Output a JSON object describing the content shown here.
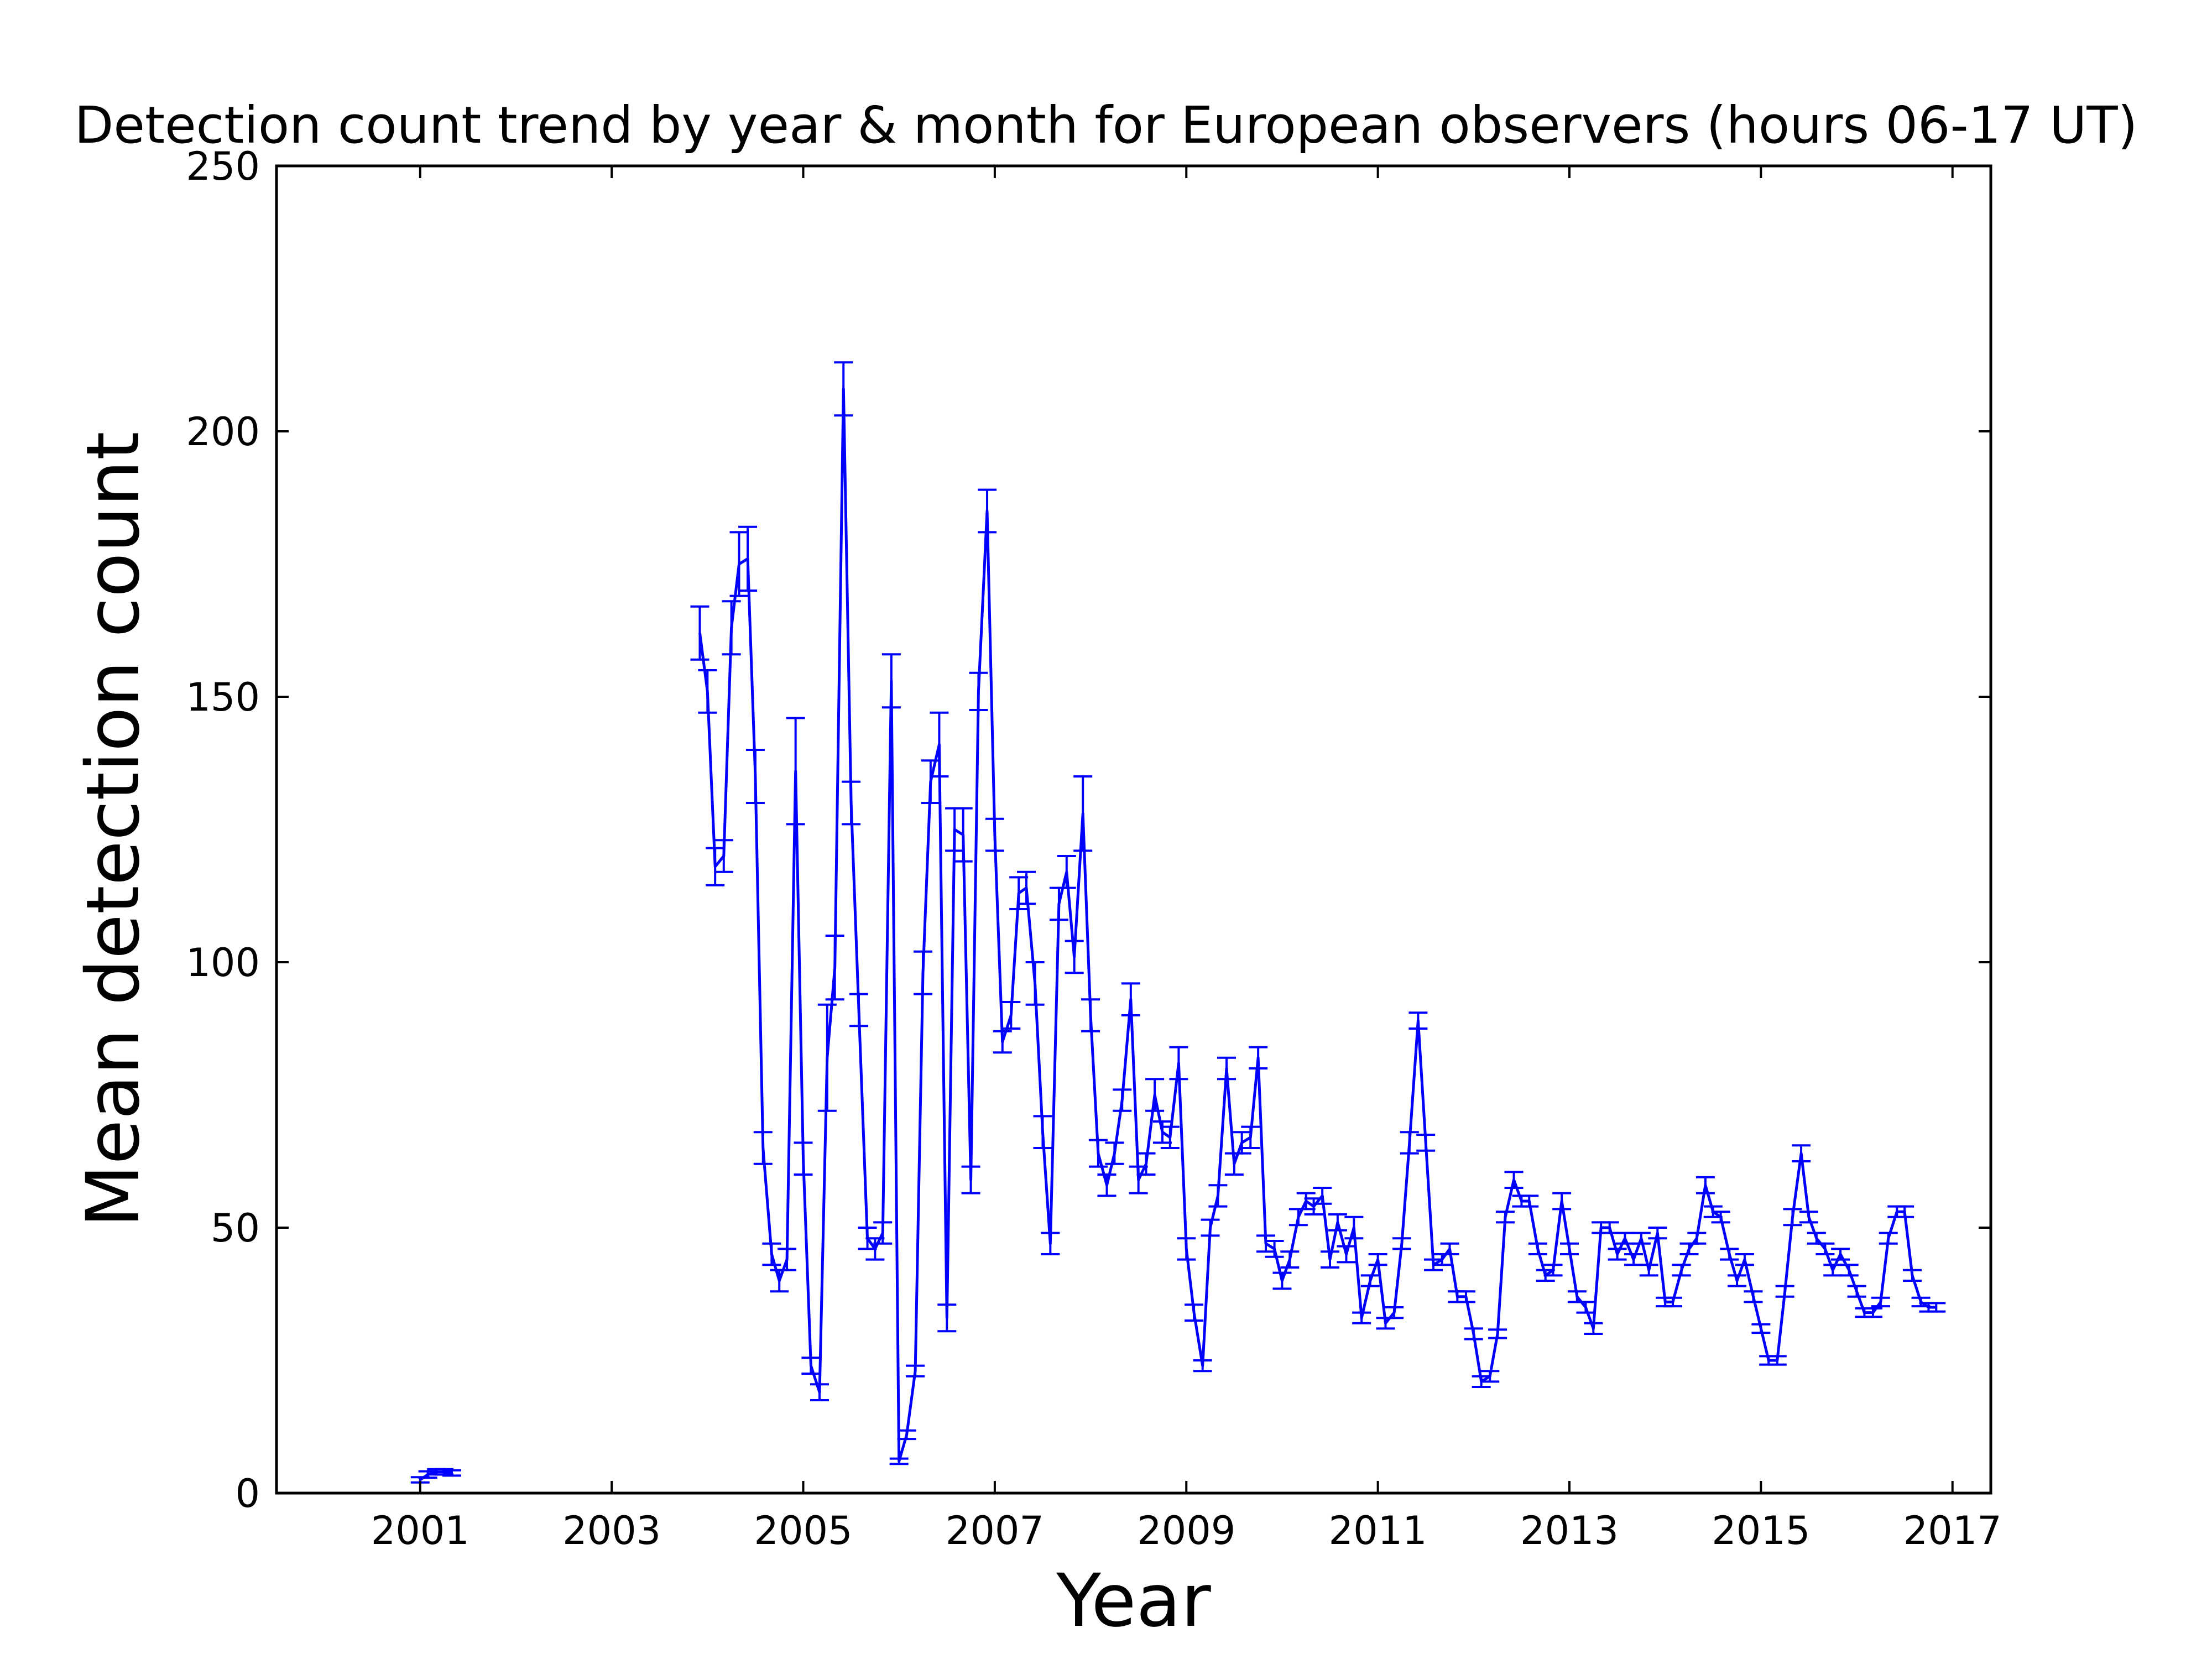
{
  "chart_data": {
    "type": "line",
    "title": "Detection count trend by year & month for European observers (hours 06-17 UT)",
    "xlabel": "Year",
    "ylabel": "Mean detection count",
    "xlim": [
      1999.5,
      2017.4
    ],
    "ylim": [
      0,
      250
    ],
    "x_ticks": [
      2001,
      2003,
      2005,
      2007,
      2009,
      2011,
      2013,
      2015,
      2017
    ],
    "x_tick_labels": [
      "2001",
      "2003",
      "2005",
      "2007",
      "2009",
      "2011",
      "2013",
      "2015",
      "2017"
    ],
    "y_ticks": [
      0,
      50,
      100,
      150,
      200,
      250
    ],
    "y_tick_labels": [
      "0",
      "50",
      "100",
      "150",
      "200",
      "250"
    ],
    "grid": false,
    "legend": null,
    "series": [
      {
        "color": "#0000ff",
        "error_bars": true,
        "segments": [
          [
            [
              2001.0,
              2.5,
              0.5
            ],
            [
              2001.08,
              3.5,
              0.6
            ],
            [
              2001.17,
              4.0,
              0.5
            ],
            [
              2001.25,
              4.0,
              0.5
            ],
            [
              2001.33,
              3.8,
              0.5
            ]
          ],
          [
            [
              2003.92,
              162,
              5
            ],
            [
              2004.0,
              151,
              4
            ],
            [
              2004.08,
              118,
              3.5
            ],
            [
              2004.17,
              120,
              3
            ],
            [
              2004.25,
              163,
              5
            ],
            [
              2004.33,
              175,
              6
            ],
            [
              2004.42,
              176,
              6
            ],
            [
              2004.5,
              135,
              5
            ],
            [
              2004.58,
              65,
              3
            ],
            [
              2004.67,
              45,
              2
            ],
            [
              2004.75,
              40,
              2
            ],
            [
              2004.83,
              44,
              2
            ],
            [
              2004.92,
              136,
              10
            ],
            [
              2005.0,
              63,
              3
            ],
            [
              2005.08,
              24,
              1.5
            ],
            [
              2005.17,
              19,
              1.5
            ],
            [
              2005.25,
              82,
              10
            ],
            [
              2005.33,
              99,
              6
            ],
            [
              2005.42,
              208,
              5
            ],
            [
              2005.5,
              130,
              4
            ],
            [
              2005.58,
              91,
              3
            ],
            [
              2005.67,
              48,
              2
            ],
            [
              2005.75,
              46,
              2
            ],
            [
              2005.83,
              49,
              2
            ],
            [
              2005.92,
              153,
              5
            ],
            [
              2006.0,
              6,
              0.5
            ],
            [
              2006.08,
              11,
              0.8
            ],
            [
              2006.17,
              23,
              1
            ],
            [
              2006.25,
              98,
              4
            ],
            [
              2006.33,
              134,
              4
            ],
            [
              2006.42,
              141,
              6
            ],
            [
              2006.5,
              33,
              2.5
            ],
            [
              2006.58,
              125,
              4
            ],
            [
              2006.67,
              124,
              5
            ],
            [
              2006.75,
              59,
              2.5
            ],
            [
              2006.83,
              151,
              3.5
            ],
            [
              2006.92,
              185,
              4
            ],
            [
              2007.0,
              124,
              3
            ],
            [
              2007.08,
              85,
              2
            ],
            [
              2007.17,
              90,
              2.5
            ],
            [
              2007.25,
              113,
              3
            ],
            [
              2007.33,
              114,
              3
            ],
            [
              2007.42,
              96,
              4
            ],
            [
              2007.5,
              68,
              3
            ],
            [
              2007.58,
              47,
              2
            ],
            [
              2007.67,
              111,
              3
            ],
            [
              2007.75,
              117,
              3
            ],
            [
              2007.83,
              101,
              3
            ],
            [
              2007.92,
              128,
              7
            ],
            [
              2008.0,
              90,
              3
            ],
            [
              2008.08,
              64,
              2.5
            ],
            [
              2008.17,
              58,
              2
            ],
            [
              2008.25,
              64,
              2
            ],
            [
              2008.33,
              74,
              2
            ],
            [
              2008.42,
              93,
              3
            ],
            [
              2008.5,
              59,
              2.5
            ],
            [
              2008.58,
              62,
              2
            ],
            [
              2008.67,
              75,
              3
            ],
            [
              2008.75,
              68,
              2
            ],
            [
              2008.83,
              67,
              2
            ],
            [
              2008.92,
              81,
              3
            ],
            [
              2009.0,
              46,
              2
            ],
            [
              2009.08,
              34,
              1.5
            ],
            [
              2009.17,
              24,
              1
            ],
            [
              2009.25,
              50,
              1.5
            ],
            [
              2009.33,
              56,
              2
            ],
            [
              2009.42,
              80,
              2
            ],
            [
              2009.5,
              62,
              2
            ],
            [
              2009.58,
              66,
              2
            ],
            [
              2009.67,
              67,
              2
            ],
            [
              2009.75,
              82,
              2
            ],
            [
              2009.83,
              47,
              1.5
            ],
            [
              2009.92,
              46,
              1.5
            ],
            [
              2010.0,
              40,
              1.5
            ],
            [
              2010.08,
              44,
              1.5
            ],
            [
              2010.17,
              52,
              1.5
            ],
            [
              2010.25,
              55,
              1.5
            ],
            [
              2010.33,
              54,
              1.5
            ],
            [
              2010.42,
              56,
              1.5
            ],
            [
              2010.5,
              44,
              1.5
            ],
            [
              2010.58,
              51,
              1.5
            ],
            [
              2010.67,
              45,
              1.5
            ],
            [
              2010.75,
              50,
              2
            ],
            [
              2010.83,
              33,
              1
            ],
            [
              2010.92,
              40,
              1
            ],
            [
              2011.0,
              44,
              1
            ],
            [
              2011.08,
              32,
              1
            ],
            [
              2011.17,
              34,
              1
            ],
            [
              2011.25,
              47,
              1
            ],
            [
              2011.33,
              66,
              2
            ],
            [
              2011.42,
              89,
              1.5
            ],
            [
              2011.5,
              66,
              1.5
            ],
            [
              2011.58,
              43,
              1
            ],
            [
              2011.67,
              44,
              1
            ],
            [
              2011.75,
              46,
              1
            ],
            [
              2011.83,
              37,
              1
            ],
            [
              2011.92,
              37,
              1
            ],
            [
              2012.0,
              30,
              1
            ],
            [
              2012.08,
              21,
              1
            ],
            [
              2012.17,
              22,
              1
            ],
            [
              2012.25,
              30,
              0.8
            ],
            [
              2012.33,
              52,
              1
            ],
            [
              2012.42,
              59,
              1.5
            ],
            [
              2012.5,
              55,
              1
            ],
            [
              2012.58,
              55,
              1
            ],
            [
              2012.67,
              46,
              1
            ],
            [
              2012.75,
              41,
              1
            ],
            [
              2012.83,
              42,
              1
            ],
            [
              2012.92,
              55,
              1.5
            ],
            [
              2013.0,
              46,
              1
            ],
            [
              2013.08,
              37,
              1
            ],
            [
              2013.17,
              35,
              1
            ],
            [
              2013.25,
              31,
              1
            ],
            [
              2013.33,
              50,
              1
            ],
            [
              2013.42,
              50,
              1
            ],
            [
              2013.5,
              45,
              1
            ],
            [
              2013.58,
              48,
              1
            ],
            [
              2013.67,
              44,
              1
            ],
            [
              2013.75,
              48,
              1
            ],
            [
              2013.83,
              42,
              1
            ],
            [
              2013.92,
              49,
              1
            ],
            [
              2014.0,
              36,
              0.8
            ],
            [
              2014.08,
              36,
              0.8
            ],
            [
              2014.17,
              42,
              1
            ],
            [
              2014.25,
              46,
              1
            ],
            [
              2014.33,
              48,
              1
            ],
            [
              2014.42,
              58,
              1.5
            ],
            [
              2014.5,
              53,
              1
            ],
            [
              2014.58,
              52,
              1
            ],
            [
              2014.67,
              45,
              1
            ],
            [
              2014.75,
              40,
              1
            ],
            [
              2014.83,
              44,
              1
            ],
            [
              2014.92,
              37,
              1
            ],
            [
              2015.0,
              31,
              0.8
            ],
            [
              2015.08,
              25,
              0.8
            ],
            [
              2015.17,
              25,
              0.8
            ],
            [
              2015.25,
              38,
              1
            ],
            [
              2015.33,
              52,
              1.5
            ],
            [
              2015.42,
              64,
              1.5
            ],
            [
              2015.5,
              52,
              1
            ],
            [
              2015.58,
              48,
              1
            ],
            [
              2015.67,
              46,
              1
            ],
            [
              2015.75,
              42,
              1
            ],
            [
              2015.83,
              45,
              1
            ],
            [
              2015.92,
              42,
              1
            ],
            [
              2016.0,
              38,
              1
            ],
            [
              2016.08,
              34,
              0.8
            ],
            [
              2016.17,
              34,
              0.8
            ],
            [
              2016.25,
              36,
              0.8
            ],
            [
              2016.33,
              48,
              1
            ],
            [
              2016.42,
              53,
              1
            ],
            [
              2016.5,
              53,
              1
            ],
            [
              2016.58,
              41,
              1
            ],
            [
              2016.67,
              36,
              0.8
            ],
            [
              2016.75,
              35,
              0.8
            ],
            [
              2016.83,
              35,
              0.8
            ]
          ]
        ]
      }
    ]
  }
}
